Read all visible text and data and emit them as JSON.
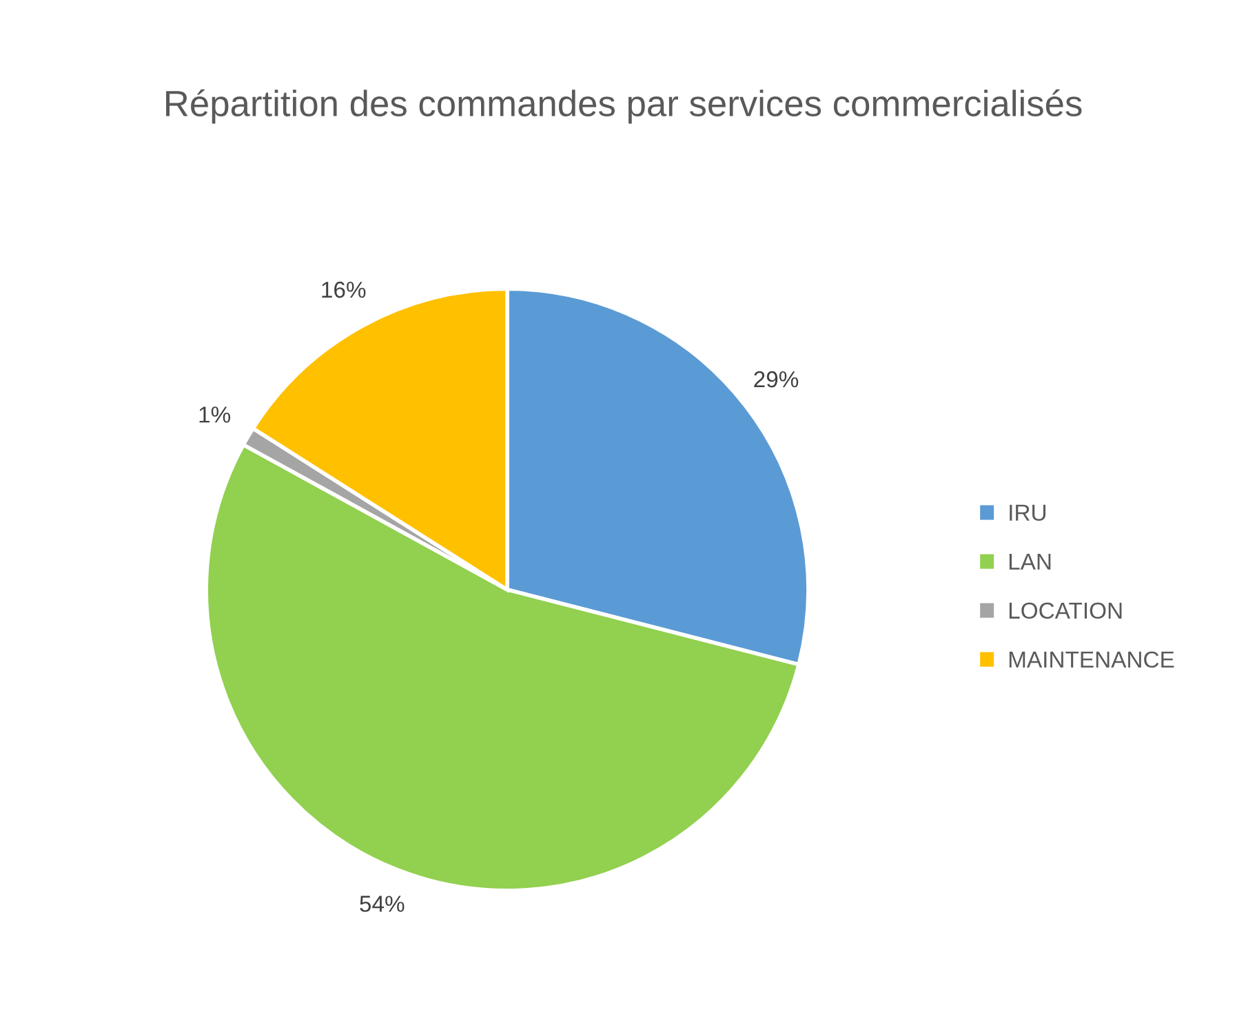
{
  "chart_data": {
    "type": "pie",
    "title": "Répartition des commandes par services commercialisés",
    "categories": [
      "IRU",
      "LAN",
      "LOCATION",
      "MAINTENANCE"
    ],
    "values": [
      29,
      54,
      1,
      16
    ],
    "colors": [
      "#5b9bd5",
      "#92d050",
      "#a5a5a5",
      "#ffc000"
    ],
    "value_labels": [
      "29%",
      "54%",
      "1%",
      "16%"
    ],
    "legend": "right"
  }
}
